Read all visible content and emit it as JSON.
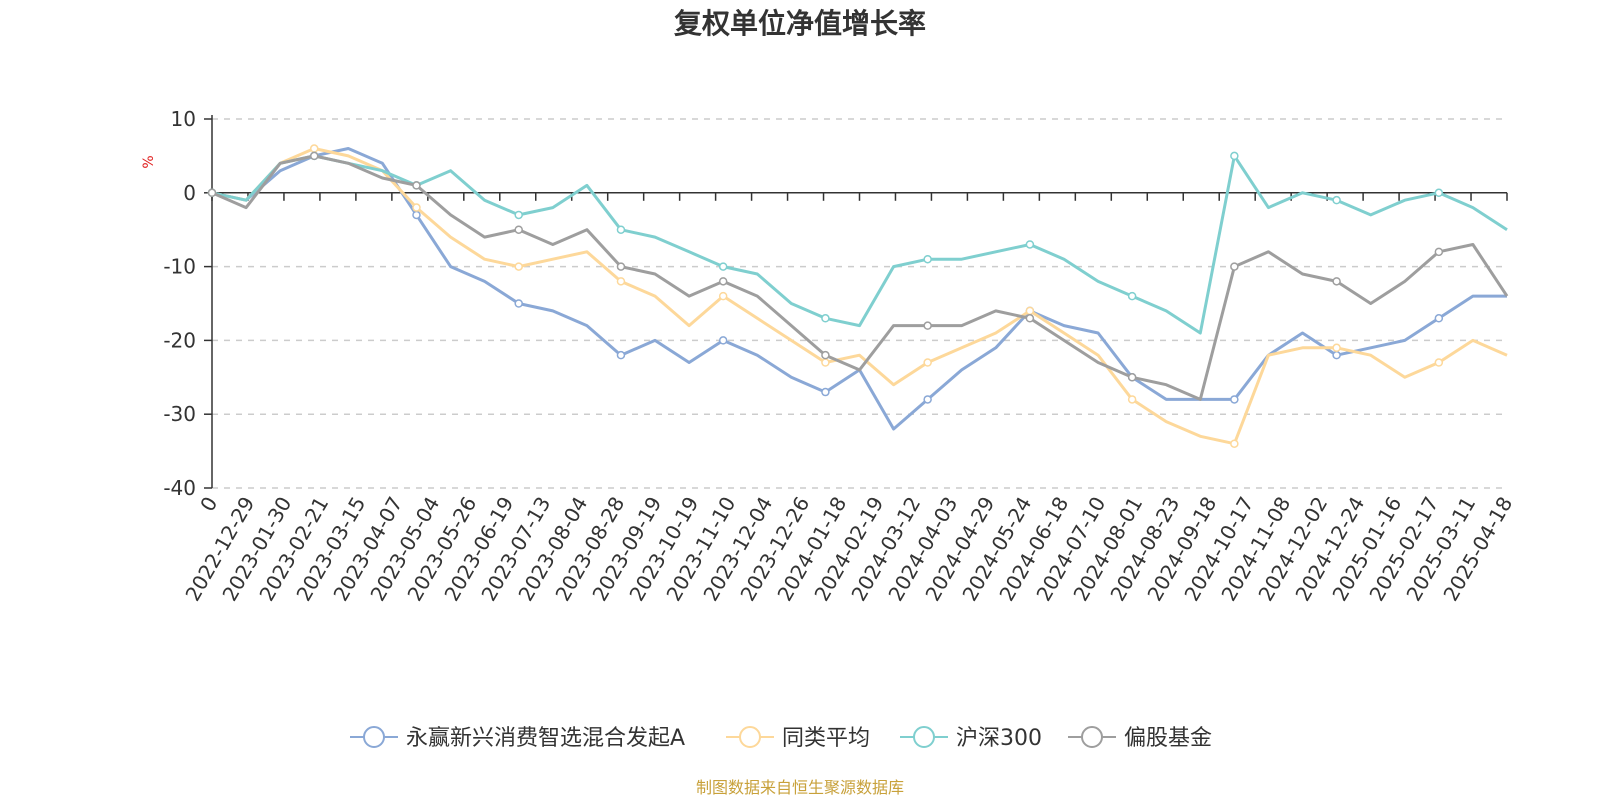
{
  "chart_data": {
    "type": "line",
    "title": "复权单位净值增长率",
    "ylabel": "%",
    "ylim": [
      -40,
      10
    ],
    "yticks": [
      10,
      0,
      -10,
      -20,
      -30,
      -40
    ],
    "x_tick_labels": [
      "0",
      "2022-12-29",
      "2023-01-30",
      "2023-02-21",
      "2023-03-15",
      "2023-04-07",
      "2023-05-04",
      "2023-05-26",
      "2023-06-19",
      "2023-07-13",
      "2023-08-04",
      "2023-08-28",
      "2023-09-19",
      "2023-10-19",
      "2023-11-10",
      "2023-12-04",
      "2023-12-26",
      "2024-01-18",
      "2024-02-19",
      "2024-03-12",
      "2024-04-03",
      "2024-04-29",
      "2024-05-24",
      "2024-06-18",
      "2024-07-10",
      "2024-08-01",
      "2024-08-23",
      "2024-09-18",
      "2024-10-17",
      "2024-11-08",
      "2024-12-02",
      "2024-12-24",
      "2025-01-16",
      "2025-02-17",
      "2025-03-11",
      "2025-04-18"
    ],
    "grid": true,
    "legend_position": "bottom",
    "series": [
      {
        "name": "永赢新兴消费智选混合发起A",
        "color": "#8aa8d6",
        "values": [
          0,
          -1,
          3,
          5,
          6,
          4,
          -3,
          -10,
          -12,
          -15,
          -16,
          -18,
          -22,
          -20,
          -23,
          -20,
          -22,
          -25,
          -27,
          -24,
          -32,
          -28,
          -24,
          -21,
          -16,
          -18,
          -19,
          -25,
          -28,
          -28,
          -28,
          -22,
          -19,
          -22,
          -21,
          -20,
          -17,
          -14,
          -14
        ]
      },
      {
        "name": "同类平均",
        "color": "#fdd89a",
        "values": [
          0,
          -1,
          4,
          6,
          5,
          3,
          -2,
          -6,
          -9,
          -10,
          -9,
          -8,
          -12,
          -14,
          -18,
          -14,
          -17,
          -20,
          -23,
          -22,
          -26,
          -23,
          -21,
          -19,
          -16,
          -19,
          -22,
          -28,
          -31,
          -33,
          -34,
          -22,
          -21,
          -21,
          -22,
          -25,
          -23,
          -20,
          -22
        ]
      },
      {
        "name": "沪深300",
        "color": "#7fcfcf",
        "values": [
          0,
          -1,
          4,
          5,
          4,
          3,
          1,
          3,
          -1,
          -3,
          -2,
          1,
          -5,
          -6,
          -8,
          -10,
          -11,
          -15,
          -17,
          -18,
          -10,
          -9,
          -9,
          -8,
          -7,
          -9,
          -12,
          -14,
          -16,
          -19,
          5,
          -2,
          0,
          -1,
          -3,
          -1,
          0,
          -2,
          -5
        ]
      },
      {
        "name": "偏股基金",
        "color": "#9e9e9e",
        "values": [
          0,
          -2,
          4,
          5,
          4,
          2,
          1,
          -3,
          -6,
          -5,
          -7,
          -5,
          -10,
          -11,
          -14,
          -12,
          -14,
          -18,
          -22,
          -24,
          -18,
          -18,
          -18,
          -16,
          -17,
          -20,
          -23,
          -25,
          -26,
          -28,
          -10,
          -8,
          -11,
          -12,
          -15,
          -12,
          -8,
          -7,
          -14
        ]
      }
    ]
  },
  "footer": {
    "source": "制图数据来自恒生聚源数据库"
  }
}
